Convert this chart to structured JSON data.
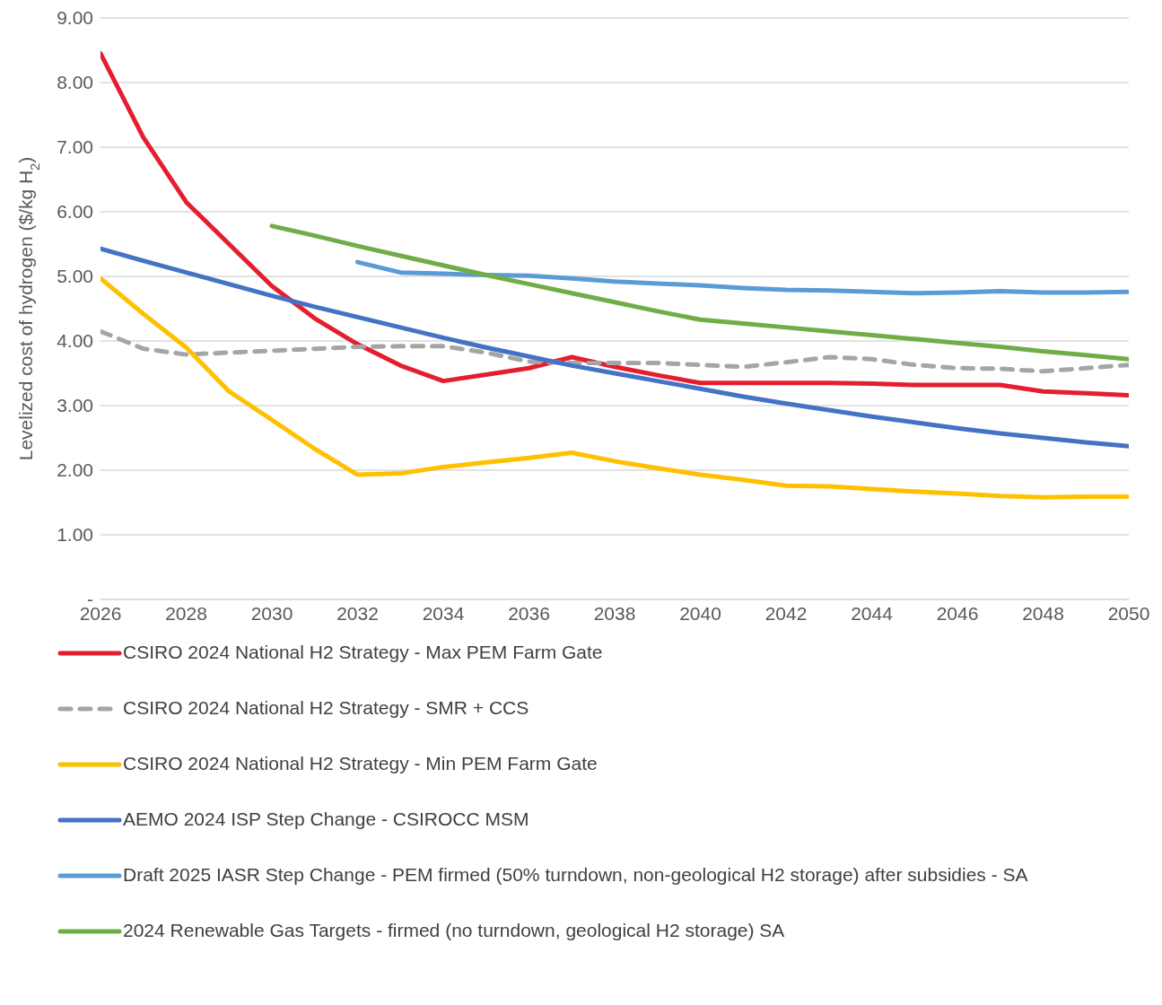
{
  "chart_data": {
    "type": "line",
    "ylabel": "Levelized cost of hydrogen ($/kg H$_{2}$)",
    "x": [
      2026,
      2027,
      2028,
      2029,
      2030,
      2031,
      2032,
      2033,
      2034,
      2035,
      2036,
      2037,
      2038,
      2039,
      2040,
      2041,
      2042,
      2043,
      2044,
      2045,
      2046,
      2047,
      2048,
      2049,
      2050
    ],
    "xlim": [
      2026,
      2050
    ],
    "xticks": [
      2026,
      2028,
      2030,
      2032,
      2034,
      2036,
      2038,
      2040,
      2042,
      2044,
      2046,
      2048,
      2050
    ],
    "ylim": [
      0,
      9
    ],
    "yticks": [
      {
        "value": 0,
        "label": "-"
      },
      {
        "value": 1,
        "label": "1.00"
      },
      {
        "value": 2,
        "label": "2.00"
      },
      {
        "value": 3,
        "label": "3.00"
      },
      {
        "value": 4,
        "label": "4.00"
      },
      {
        "value": 5,
        "label": "5.00"
      },
      {
        "value": 6,
        "label": "6.00"
      },
      {
        "value": 7,
        "label": "7.00"
      },
      {
        "value": 8,
        "label": "8.00"
      },
      {
        "value": 9,
        "label": "9.00"
      }
    ],
    "grid": "y",
    "legend": "bottom",
    "marker": "none",
    "series": [
      {
        "name": "CSIRO 2024 National H2 Strategy - Max PEM Farm Gate",
        "color": "#e41e2f",
        "values": [
          8.45,
          7.15,
          6.15,
          5.5,
          4.85,
          4.35,
          3.95,
          3.62,
          3.38,
          3.48,
          3.58,
          3.75,
          3.6,
          3.47,
          3.35,
          3.35,
          3.35,
          3.35,
          3.34,
          3.32,
          3.32,
          3.32,
          3.22,
          3.19,
          3.16
        ]
      },
      {
        "name": "CSIRO 2024 National H2 Strategy - SMR + CCS",
        "color": "#a5a5a5",
        "line_style": "dashed",
        "values": [
          4.15,
          3.88,
          3.79,
          3.82,
          3.85,
          3.88,
          3.91,
          3.92,
          3.92,
          3.82,
          3.68,
          3.66,
          3.66,
          3.66,
          3.63,
          3.6,
          3.67,
          3.75,
          3.72,
          3.63,
          3.58,
          3.57,
          3.53,
          3.58,
          3.63
        ]
      },
      {
        "name": "CSIRO 2024 National H2 Strategy - Min PEM Farm Gate",
        "color": "#ffc000",
        "values": [
          4.97,
          4.42,
          3.9,
          3.22,
          2.78,
          2.33,
          1.93,
          1.95,
          2.05,
          2.12,
          2.19,
          2.27,
          2.14,
          2.03,
          1.93,
          1.85,
          1.76,
          1.75,
          1.71,
          1.67,
          1.64,
          1.6,
          1.58,
          1.59,
          1.59
        ]
      },
      {
        "name": "AEMO 2024 ISP Step Change - CSIROCC MSM",
        "color": "#4472c4",
        "values": [
          5.43,
          5.24,
          5.06,
          4.88,
          4.7,
          4.53,
          4.37,
          4.21,
          4.05,
          3.9,
          3.76,
          3.62,
          3.5,
          3.38,
          3.26,
          3.14,
          3.03,
          2.93,
          2.83,
          2.74,
          2.65,
          2.57,
          2.5,
          2.43,
          2.37
        ]
      },
      {
        "name": "Draft 2025 IASR Step Change - PEM firmed (50% turndown, non-geological H2 storage) after subsidies - SA",
        "color": "#5b9bd5",
        "values": [
          null,
          null,
          null,
          null,
          null,
          null,
          5.22,
          5.06,
          5.04,
          5.02,
          5.01,
          4.97,
          4.92,
          4.89,
          4.86,
          4.82,
          4.79,
          4.78,
          4.76,
          4.74,
          4.75,
          4.77,
          4.75,
          4.75,
          4.76
        ]
      },
      {
        "name": "2024 Renewable Gas Targets - firmed (no turndown, geological H2 storage) SA",
        "color": "#70ad47",
        "values": [
          null,
          null,
          null,
          null,
          5.78,
          5.63,
          5.47,
          5.32,
          5.17,
          5.02,
          4.88,
          4.74,
          4.6,
          4.46,
          4.33,
          4.27,
          4.21,
          4.15,
          4.09,
          4.03,
          3.97,
          3.91,
          3.84,
          3.78,
          3.72
        ]
      }
    ]
  }
}
